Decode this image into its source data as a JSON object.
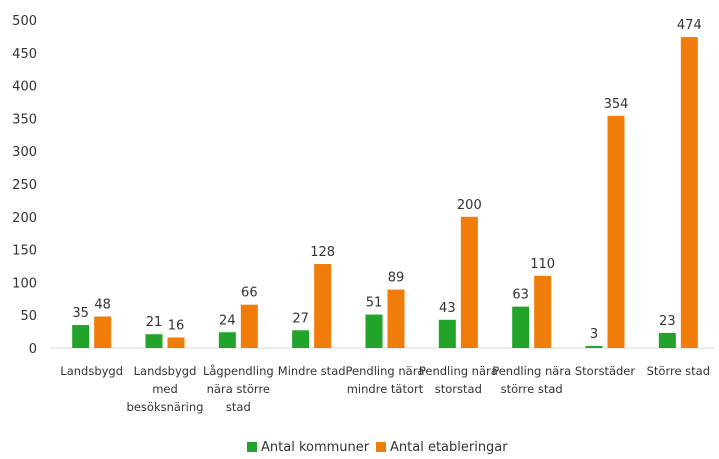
{
  "chart_data": {
    "type": "bar",
    "categories": [
      [
        "Landsbygd"
      ],
      [
        "Landsbygd",
        "med",
        "besöksnäring"
      ],
      [
        "Lågpendling",
        "nära större",
        "stad"
      ],
      [
        "Mindre stad"
      ],
      [
        "Pendling nära",
        "mindre tätort"
      ],
      [
        "Pendling nära",
        "storstad"
      ],
      [
        "Pendling nära",
        "större stad"
      ],
      [
        "Storstäder"
      ],
      [
        "Större stad"
      ]
    ],
    "series": [
      {
        "name": "Antal kommuner",
        "color": "#22a32a",
        "values": [
          35,
          21,
          24,
          27,
          51,
          43,
          63,
          3,
          23
        ]
      },
      {
        "name": "Antal etableringar",
        "color": "#f07d0a",
        "values": [
          48,
          16,
          66,
          128,
          89,
          200,
          110,
          354,
          474
        ]
      }
    ],
    "ylim": [
      0,
      500
    ],
    "yticks": [
      0,
      50,
      100,
      150,
      200,
      250,
      300,
      350,
      400,
      450,
      500
    ],
    "grid": false,
    "legend_position": "bottom-center"
  }
}
